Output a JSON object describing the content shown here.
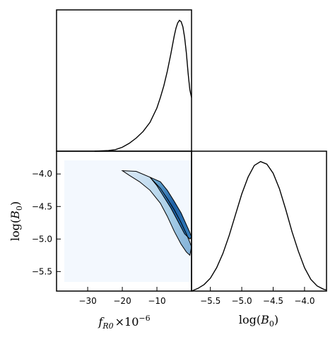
{
  "chart_data": [
    {
      "type": "line",
      "panel": "top-left",
      "title": "",
      "xlabel": "",
      "ylabel": "",
      "xlim": [
        -39,
        0
      ],
      "ylim": [
        0,
        1.08
      ],
      "grid": false,
      "series": [
        {
          "x": [
            -28,
            -24,
            -22,
            -20,
            -18,
            -16,
            -14,
            -12,
            -10,
            -9,
            -8,
            -7,
            -6,
            -5,
            -4.5,
            -4,
            -3.5,
            -3,
            -2.5,
            -2,
            -1.5,
            -1,
            -0.5,
            0
          ],
          "y": [
            0.0,
            0.005,
            0.012,
            0.03,
            0.06,
            0.1,
            0.15,
            0.22,
            0.33,
            0.41,
            0.5,
            0.61,
            0.74,
            0.88,
            0.94,
            0.98,
            1.0,
            0.99,
            0.95,
            0.87,
            0.75,
            0.6,
            0.47,
            0.41
          ]
        }
      ]
    },
    {
      "type": "heatmap",
      "panel": "bottom-left",
      "title": "",
      "xlabel": "f_R0 ×10^-6",
      "ylabel": "log(B_0)",
      "xlim": [
        -39,
        0
      ],
      "ylim": [
        -5.8,
        -3.65
      ],
      "xticks": [
        -30,
        -20,
        -10
      ],
      "xtick_labels": [
        "−30",
        "−20",
        "−10"
      ],
      "yticks": [
        -4.0,
        -4.5,
        -5.0,
        -5.5
      ],
      "ytick_labels": [
        "−4.0",
        "−4.5",
        "−5.0",
        "−5.5"
      ],
      "xlabel_main": "f",
      "xlabel_sub": "R0",
      "xlabel_mult": "×10",
      "xlabel_exp": "−6",
      "ylabel_main": "log(",
      "ylabel_var": "B",
      "ylabel_sub": "0",
      "ylabel_close": ")",
      "contours": [
        {
          "level": "outer",
          "x": [
            -20,
            -16,
            -12,
            -9,
            -7,
            -5,
            -3,
            -1.5,
            -0.5,
            0,
            -0.5,
            -1.5,
            -3,
            -5,
            -7,
            -9,
            -12,
            -15,
            -18,
            -20
          ],
          "y": [
            -3.95,
            -3.96,
            -4.05,
            -4.22,
            -4.38,
            -4.55,
            -4.75,
            -4.92,
            -5.05,
            -5.12,
            -5.25,
            -5.2,
            -5.08,
            -4.88,
            -4.65,
            -4.45,
            -4.25,
            -4.12,
            -4.02,
            -3.95
          ]
        },
        {
          "level": "inner",
          "x": [
            -12,
            -9,
            -7,
            -5,
            -3,
            -1.5,
            -0.5,
            0,
            -0.5,
            -2,
            -4,
            -6,
            -8,
            -10,
            -12
          ],
          "y": [
            -4.05,
            -4.12,
            -4.25,
            -4.42,
            -4.6,
            -4.78,
            -4.9,
            -4.97,
            -5.0,
            -4.92,
            -4.72,
            -4.52,
            -4.35,
            -4.18,
            -4.05
          ]
        }
      ]
    },
    {
      "type": "line",
      "panel": "bottom-right",
      "title": "",
      "xlabel": "log(B_0)",
      "ylabel": "",
      "xlim": [
        -5.8,
        -3.65
      ],
      "ylim": [
        0,
        1.08
      ],
      "xticks": [
        -5.5,
        -5.0,
        -4.5,
        -4.0
      ],
      "xtick_labels": [
        "−5.5",
        "−5.0",
        "−4.5",
        "−4.0"
      ],
      "xlabel_main": "log(",
      "xlabel_var": "B",
      "xlabel_sub": "0",
      "xlabel_close": ")",
      "series": [
        {
          "x": [
            -5.8,
            -5.7,
            -5.6,
            -5.5,
            -5.4,
            -5.3,
            -5.2,
            -5.1,
            -5.0,
            -4.9,
            -4.8,
            -4.7,
            -4.6,
            -4.5,
            -4.4,
            -4.3,
            -4.2,
            -4.1,
            -4.0,
            -3.9,
            -3.8,
            -3.7,
            -3.65
          ],
          "y": [
            0.0,
            0.02,
            0.05,
            0.1,
            0.18,
            0.29,
            0.43,
            0.59,
            0.75,
            0.88,
            0.97,
            1.0,
            0.98,
            0.91,
            0.79,
            0.63,
            0.46,
            0.31,
            0.18,
            0.09,
            0.04,
            0.015,
            0.008
          ]
        }
      ]
    }
  ]
}
